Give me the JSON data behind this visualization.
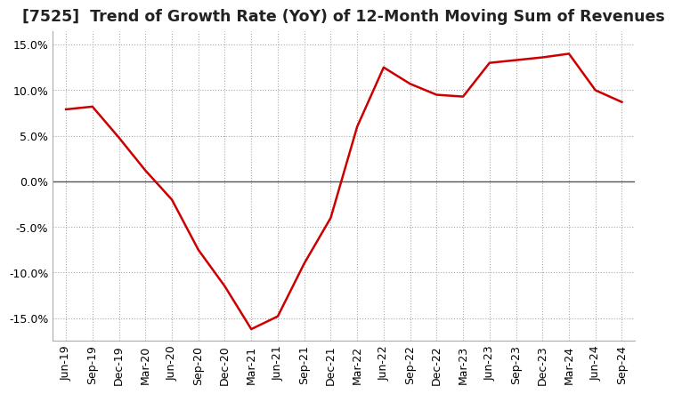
{
  "title": "[7525]  Trend of Growth Rate (YoY) of 12-Month Moving Sum of Revenues",
  "title_fontsize": 12.5,
  "background_color": "#ffffff",
  "plot_bg_color": "#ffffff",
  "line_color": "#cc0000",
  "ylim": [
    -0.175,
    0.165
  ],
  "yticks": [
    -0.15,
    -0.1,
    -0.05,
    0.0,
    0.05,
    0.1,
    0.15
  ],
  "dates": [
    "Jun-19",
    "Sep-19",
    "Dec-19",
    "Mar-20",
    "Jun-20",
    "Sep-20",
    "Dec-20",
    "Mar-21",
    "Jun-21",
    "Sep-21",
    "Dec-21",
    "Mar-22",
    "Jun-22",
    "Sep-22",
    "Dec-22",
    "Mar-23",
    "Jun-23",
    "Sep-23",
    "Dec-23",
    "Mar-24",
    "Jun-24",
    "Sep-24"
  ],
  "values": [
    0.079,
    0.082,
    0.048,
    0.012,
    -0.02,
    -0.075,
    -0.115,
    -0.162,
    -0.148,
    -0.09,
    -0.04,
    0.06,
    0.125,
    0.107,
    0.095,
    0.093,
    0.13,
    0.133,
    0.136,
    0.14,
    0.1,
    0.087
  ],
  "grid_color": "#aaaaaa",
  "tick_label_fontsize": 9,
  "line_width": 1.8,
  "zero_line_color": "#555555"
}
